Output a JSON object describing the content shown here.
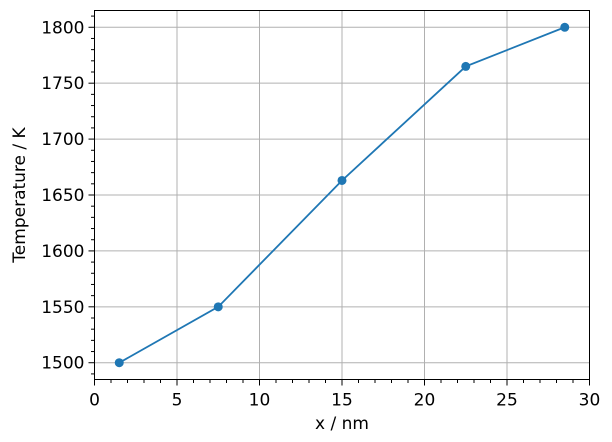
{
  "chart_data": {
    "type": "line",
    "title": "",
    "xlabel": "x / nm",
    "ylabel": "Temperature / K",
    "xlim": [
      0,
      30
    ],
    "ylim": [
      1485,
      1815
    ],
    "x_ticks": [
      0,
      5,
      10,
      15,
      20,
      25,
      30
    ],
    "y_ticks": [
      1500,
      1550,
      1600,
      1650,
      1700,
      1750,
      1800
    ],
    "grid": true,
    "minor_ticks": true,
    "series": [
      {
        "color": "#1f77b4",
        "marker": "circle",
        "x": [
          1.5,
          7.5,
          15,
          22.5,
          28.5
        ],
        "y": [
          1500,
          1550,
          1663,
          1765,
          1800
        ]
      }
    ]
  }
}
